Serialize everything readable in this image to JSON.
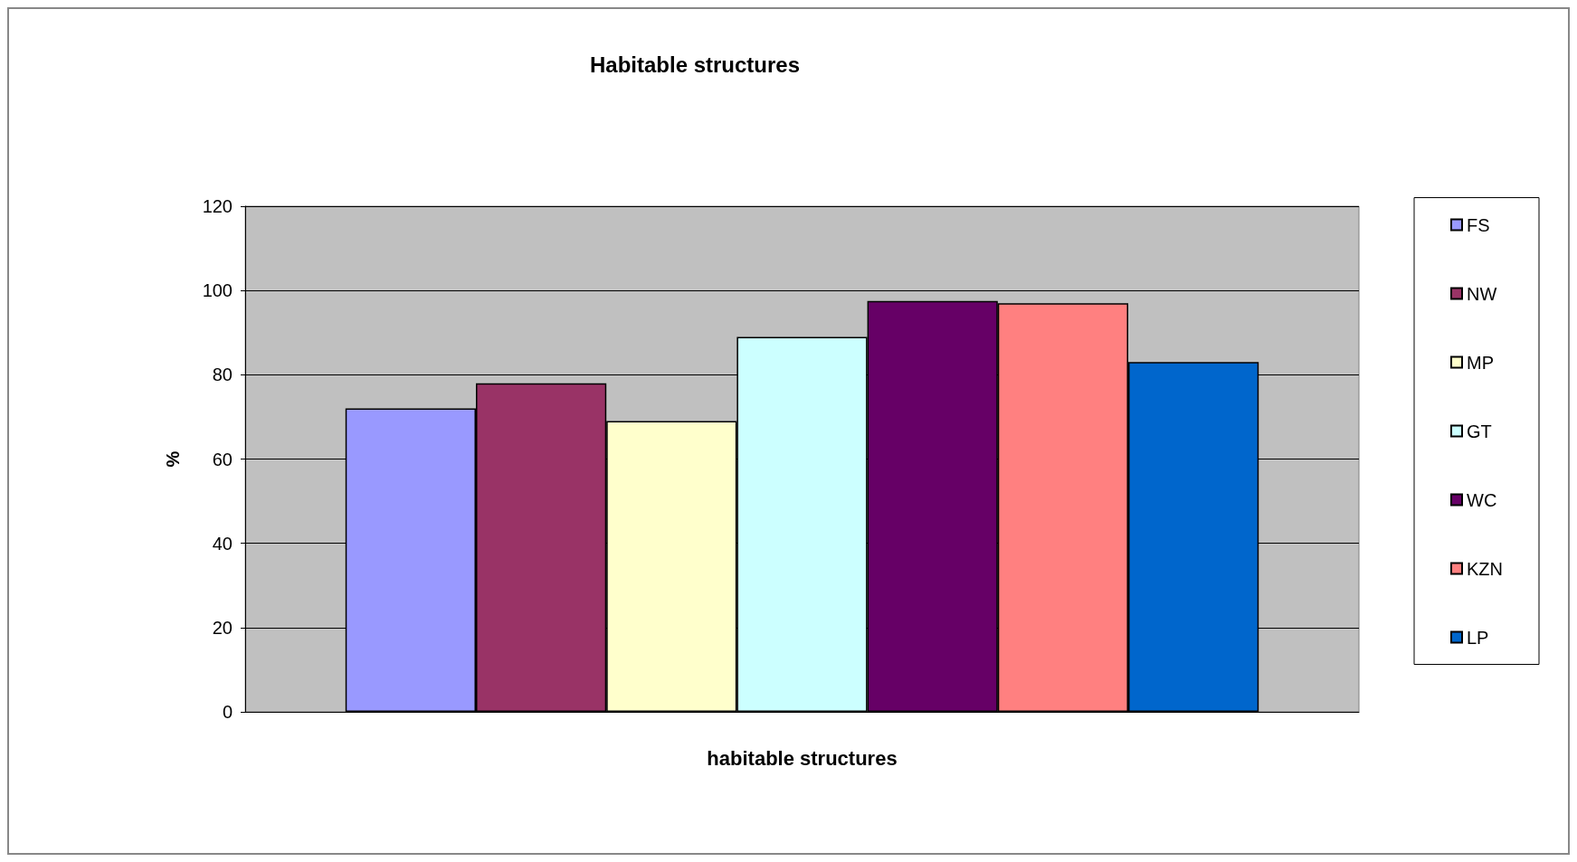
{
  "chart_data": {
    "type": "bar",
    "title": "Habitable structures",
    "ylabel": "%",
    "categories": [
      "habitable structures"
    ],
    "series": [
      {
        "name": "FS",
        "color": "#9999ff",
        "values": [
          72
        ]
      },
      {
        "name": "NW",
        "color": "#993366",
        "values": [
          78
        ]
      },
      {
        "name": "MP",
        "color": "#ffffcc",
        "values": [
          69
        ]
      },
      {
        "name": "GT",
        "color": "#ccffff",
        "values": [
          89
        ]
      },
      {
        "name": "WC",
        "color": "#660066",
        "values": [
          97.5
        ]
      },
      {
        "name": "KZN",
        "color": "#ff8080",
        "values": [
          97
        ]
      },
      {
        "name": "LP",
        "color": "#0066cc",
        "values": [
          83
        ]
      }
    ],
    "ylim": [
      0,
      120
    ],
    "yticks": [
      0,
      20,
      40,
      60,
      80,
      100,
      120
    ],
    "grid": "y",
    "legend": "right"
  }
}
